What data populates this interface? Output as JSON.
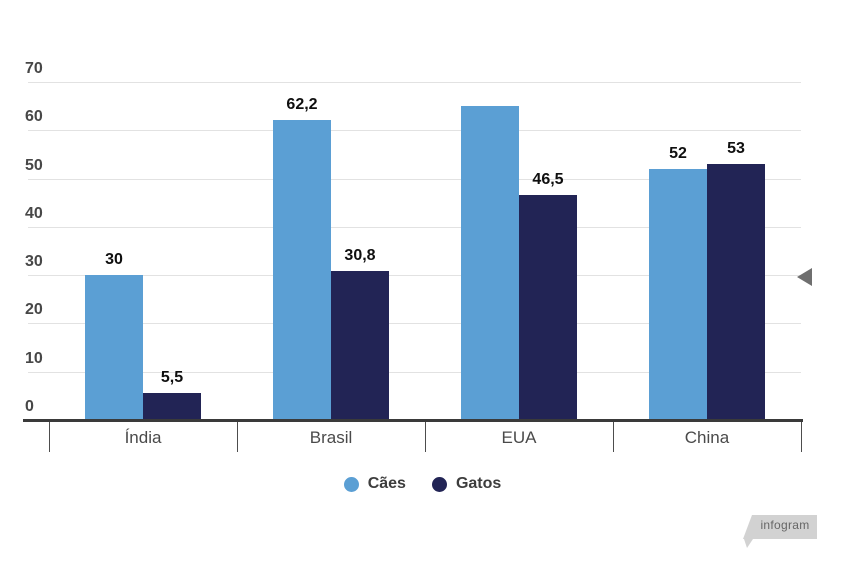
{
  "watermark": {
    "label": "infogram"
  },
  "colors": {
    "caes": "#5B9FD4",
    "gatos": "#222455",
    "grid": "#e2e2e2",
    "axis": "#3a3a3a",
    "tick_label": "#474747",
    "category_label": "#4a4a4a",
    "data_label": "#0f0f0f",
    "legend_label": "#3d3d3d",
    "arrow": "#6f6f6f",
    "watermark_bg": "#d2d2d2",
    "watermark_text": "#666666"
  },
  "chart_data": {
    "type": "bar",
    "title": "",
    "xlabel": "",
    "ylabel": "",
    "categories": [
      "Índia",
      "Brasil",
      "EUA",
      "China"
    ],
    "series": [
      {
        "name": "Cães",
        "color_key": "caes",
        "values": [
          30,
          62.2,
          65,
          52
        ],
        "labels": [
          "30",
          "62,2",
          "",
          "52"
        ]
      },
      {
        "name": "Gatos",
        "color_key": "gatos",
        "values": [
          5.5,
          30.8,
          46.5,
          53
        ],
        "labels": [
          "5,5",
          "30,8",
          "46,5",
          "53"
        ]
      }
    ],
    "yticks": [
      0,
      10,
      20,
      30,
      40,
      50,
      60,
      70
    ],
    "ylim": [
      0,
      70
    ],
    "grid": true,
    "legend_position": "bottom"
  }
}
